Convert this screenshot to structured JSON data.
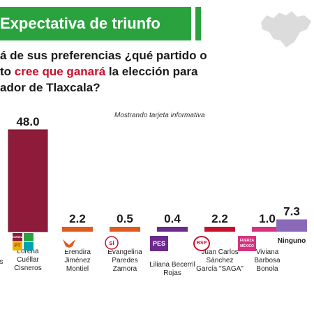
{
  "header": {
    "title": "Expectativa de triunfo",
    "question_line1": "á de sus preferencias ¿qué partido o",
    "question_line2a": "to ",
    "question_line2b": "cree que ganará",
    "question_line2c": " la elección para",
    "question_line3": "ador de Tlaxcala?",
    "note": "Mostrando tarjeta informativa"
  },
  "colors": {
    "green": "#2aa33f",
    "maroon": "#8e1b3a",
    "orange": "#e05a1c",
    "pes_purple": "#6c2a8c",
    "red": "#c8102e",
    "pink": "#d6327e",
    "ninguno_purple": "#8a6ab8"
  },
  "chart_data": {
    "type": "bar",
    "categories": [
      "Lorena Cuéllar Cisneros",
      "Eréndira Jiménez Montiel",
      "Evangelina Paredes Zamora",
      "Liliana Becerril Rojas",
      "Juan Carlos Sánchez García \"SAGA\"",
      "Viviana Barbosa Bonola",
      "Ninguno"
    ],
    "values": [
      48.0,
      2.2,
      0.5,
      0.4,
      2.2,
      1.0,
      7.3
    ],
    "value_labels": [
      "48.0",
      "2.2",
      "0.5",
      "0.4",
      "2.2",
      "1.0",
      "7.3"
    ],
    "ylim": [
      0,
      50
    ]
  },
  "candidates": [
    {
      "line1": "Lorena",
      "line2": "Cuéllar",
      "line3": "Cisneros"
    },
    {
      "line1": "Eréndira",
      "line2": "Jiménez",
      "line3": "Montiel"
    },
    {
      "line1": "Evangelina",
      "line2": "Paredes",
      "line3": "Zamora"
    },
    {
      "line1": "Liliana Becerril",
      "line2": "Rojas",
      "line3": ""
    },
    {
      "line1": "Juan Carlos",
      "line2": "Sánchez",
      "line3": "García \"SAGA\""
    },
    {
      "line1": "Viviana",
      "line2": "Barbosa",
      "line3": "Bonola"
    },
    {
      "line1": "Ninguno",
      "line2": "",
      "line3": ""
    }
  ],
  "left_cut_label": "s",
  "logos": {
    "pes": "PES",
    "rsp": "RSP",
    "fxm_1": "FUERZA",
    "fxm_2": "MÉXICO",
    "pt": "PT",
    "morena": "MORENA"
  }
}
